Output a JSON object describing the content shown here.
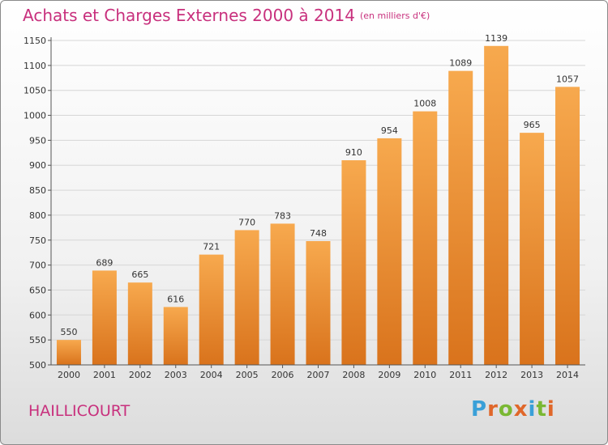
{
  "title": "Achats et Charges Externes 2000 à 2014",
  "subtitle": "(en milliers d'€)",
  "location": "HAILLICOURT",
  "logo": {
    "letters": [
      "P",
      "r",
      "o",
      "x",
      "i",
      "t",
      "i"
    ],
    "colors": [
      "#3aa0d8",
      "#e0672a",
      "#7ab833",
      "#e0672a",
      "#3aa0d8",
      "#7ab833",
      "#e0672a"
    ]
  },
  "colors": {
    "bar_top": "#f7a94e",
    "bar_bottom": "#d9731c",
    "text_accent": "#c8307d"
  },
  "chart_data": {
    "type": "bar",
    "title": "Achats et Charges Externes 2000 à 2014",
    "subtitle": "(en milliers d'€)",
    "xlabel": "",
    "ylabel": "",
    "categories": [
      "2000",
      "2001",
      "2002",
      "2003",
      "2004",
      "2005",
      "2006",
      "2007",
      "2008",
      "2009",
      "2010",
      "2011",
      "2012",
      "2013",
      "2014"
    ],
    "values": [
      550,
      689,
      665,
      616,
      721,
      770,
      783,
      748,
      910,
      954,
      1008,
      1089,
      1139,
      965,
      1057
    ],
    "ylim": [
      500,
      1150
    ],
    "yticks": [
      500,
      550,
      600,
      650,
      700,
      750,
      800,
      850,
      900,
      950,
      1000,
      1050,
      1100,
      1150
    ],
    "grid": true,
    "legend": "none"
  }
}
